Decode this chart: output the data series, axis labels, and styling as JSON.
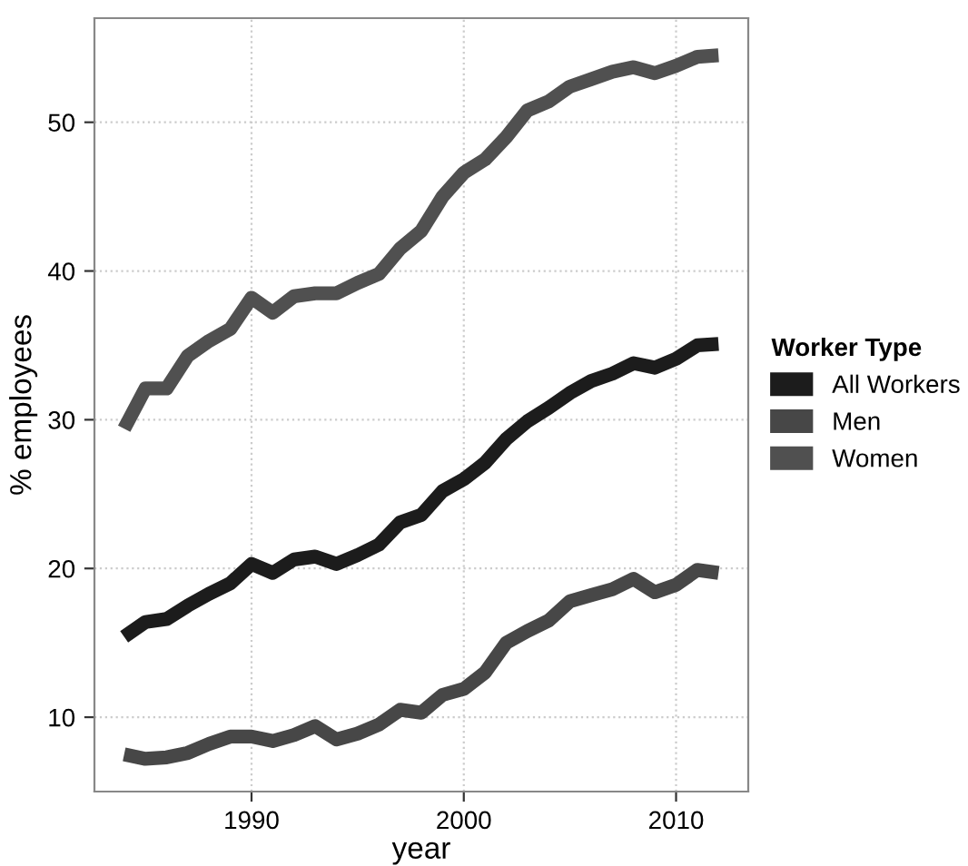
{
  "chart_data": {
    "type": "line",
    "xlabel": "year",
    "ylabel": "% employees",
    "legend_title": "Worker Type",
    "legend": "right",
    "grid": true,
    "line_style": "solid",
    "x": [
      1984,
      1985,
      1986,
      1987,
      1988,
      1989,
      1990,
      1991,
      1992,
      1993,
      1994,
      1995,
      1996,
      1997,
      1998,
      1999,
      2000,
      2001,
      2002,
      2003,
      2004,
      2005,
      2006,
      2007,
      2008,
      2009,
      2010,
      2011,
      2012
    ],
    "xlim": [
      1982.6,
      2013.4
    ],
    "xticks": [
      1990,
      2000,
      2010
    ],
    "ylim": [
      5,
      57
    ],
    "yticks": [
      10,
      20,
      30,
      40,
      50
    ],
    "series": [
      {
        "name": "All Workers",
        "color": "#1c1c1c",
        "values": [
          15.4,
          16.4,
          16.6,
          17.5,
          18.3,
          19.0,
          20.3,
          19.7,
          20.6,
          20.8,
          20.3,
          20.9,
          21.6,
          23.1,
          23.6,
          25.2,
          26.0,
          27.1,
          28.7,
          29.9,
          30.8,
          31.8,
          32.6,
          33.1,
          33.8,
          33.5,
          34.1,
          35.0,
          35.1
        ]
      },
      {
        "name": "Men",
        "color": "#474747",
        "values": [
          7.5,
          7.2,
          7.3,
          7.6,
          8.2,
          8.7,
          8.7,
          8.4,
          8.8,
          9.4,
          8.5,
          8.9,
          9.5,
          10.5,
          10.3,
          11.5,
          11.9,
          13.0,
          15.0,
          15.8,
          16.5,
          17.8,
          18.2,
          18.6,
          19.3,
          18.4,
          18.9,
          19.9,
          19.7
        ]
      },
      {
        "name": "Women",
        "color": "#505050",
        "values": [
          29.4,
          32.1,
          32.1,
          34.3,
          35.3,
          36.1,
          38.2,
          37.2,
          38.3,
          38.5,
          38.5,
          39.2,
          39.8,
          41.5,
          42.7,
          45.0,
          46.6,
          47.5,
          49.0,
          50.8,
          51.4,
          52.4,
          52.9,
          53.4,
          53.7,
          53.3,
          53.8,
          54.4,
          54.5
        ]
      }
    ]
  }
}
